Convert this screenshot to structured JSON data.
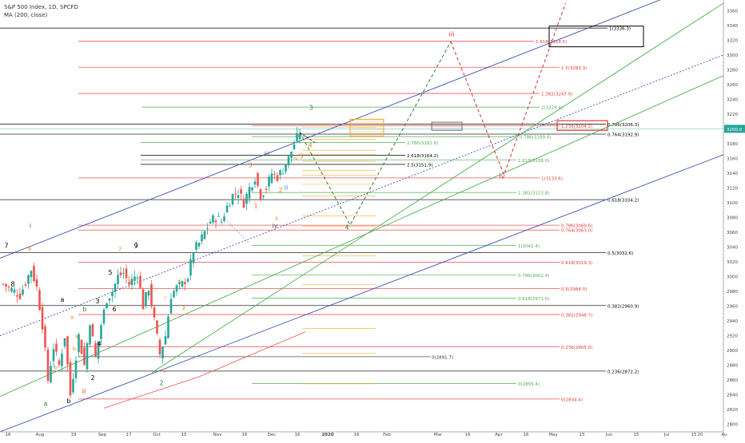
{
  "legend": {
    "title": "S&P 500 Index, 1D, SPCFD",
    "indicator": "MA (200, close)"
  },
  "chart_data": {
    "type": "candlestick",
    "ylim": [
      2790,
      3370
    ],
    "price_ticks": [
      2800,
      2820,
      2840,
      2860,
      2880,
      2900,
      2920,
      2940,
      2960,
      2980,
      3000,
      3020,
      3040,
      3060,
      3080,
      3100,
      3120,
      3140,
      3160,
      3180,
      3200,
      3220,
      3240,
      3260,
      3280,
      3300,
      3320,
      3340,
      3360
    ],
    "last_price": "3200.0",
    "last_price_value": 3200,
    "time_labels": [
      "16",
      "Aug",
      "19",
      "Sep",
      "17",
      "Oct",
      "15",
      "Nov",
      "16",
      "Dec",
      "16",
      "2020",
      "16",
      "Feb",
      "Mar",
      "16",
      "Apr",
      "16",
      "May",
      "15",
      "Jun",
      "15",
      "Jul",
      "15",
      "20",
      "Au"
    ],
    "fib_levels": [
      {
        "label": "1(3336.3)",
        "value": 3336.3,
        "color": "#000000"
      },
      {
        "label": "1.618(3318.5)",
        "value": 3318.5,
        "color": "#e53935"
      },
      {
        "label": "1.5(3283.3)",
        "value": 3283.3,
        "color": "#e53935"
      },
      {
        "label": "1.382(3247.9)",
        "value": 3247.9,
        "color": "#e53935"
      },
      {
        "label": "2(3229.4)",
        "value": 3229.4,
        "color": "#4caf50"
      },
      {
        "label": "0.786(3206.3)",
        "value": 3206.3,
        "color": "#000000"
      },
      {
        "label": "1.236(3204.2)",
        "value": 3204.2,
        "color": "#e53935"
      },
      {
        "label": "0.764(3192.9)",
        "value": 3192.9,
        "color": "#000000"
      },
      {
        "label": "0.786(3189.4)",
        "value": 3189.4,
        "color": "#4caf50"
      },
      {
        "label": "2.786(3181.6)",
        "value": 3181.6,
        "color": "#4caf50"
      },
      {
        "label": "2.618(3164.2)",
        "value": 3164.2,
        "color": "#000000"
      },
      {
        "label": "1.618(3158.0)",
        "value": 3158.0,
        "color": "#4caf50"
      },
      {
        "label": "2.5(3151.9)",
        "value": 3151.9,
        "color": "#000000"
      },
      {
        "label": "1(3133.6)",
        "value": 3133.6,
        "color": "#e53935"
      },
      {
        "label": "1.382(3113.8)",
        "value": 3113.8,
        "color": "#4caf50"
      },
      {
        "label": "0.618(3104.2)",
        "value": 3104.2,
        "color": "#000000"
      },
      {
        "label": "0.786(3069.6)",
        "value": 3069.6,
        "color": "#e53935"
      },
      {
        "label": "0.764(3063.0)",
        "value": 3063.0,
        "color": "#e53935"
      },
      {
        "label": "1(3042.4)",
        "value": 3042.4,
        "color": "#4caf50"
      },
      {
        "label": "0.5(3032.6)",
        "value": 3032.6,
        "color": "#000000"
      },
      {
        "label": "0.618(3019.3)",
        "value": 3019.3,
        "color": "#e53935"
      },
      {
        "label": "0.786(3002.4)",
        "value": 3002.4,
        "color": "#4caf50"
      },
      {
        "label": "0.5(2984.0)",
        "value": 2984.0,
        "color": "#e53935"
      },
      {
        "label": "0.618(2971.0)",
        "value": 2971.0,
        "color": "#4caf50"
      },
      {
        "label": "0.382(2960.9)",
        "value": 2960.9,
        "color": "#000000"
      },
      {
        "label": "0.382(2948.7)",
        "value": 2948.7,
        "color": "#e53935"
      },
      {
        "label": "0.236(2905.0)",
        "value": 2905.0,
        "color": "#e53935"
      },
      {
        "label": "0(2891.7)",
        "value": 2891.7,
        "color": "#333333"
      },
      {
        "label": "0.236(2872.2)",
        "value": 2872.2,
        "color": "#000000"
      },
      {
        "label": "0(2855.4)",
        "value": 2855.4,
        "color": "#4caf50"
      },
      {
        "label": "0(2834.4)",
        "value": 2834.4,
        "color": "#e53935"
      }
    ],
    "wave_labels": [
      {
        "text": "i",
        "color": "#d32f2f"
      },
      {
        "text": "ii",
        "color": "#d32f2f"
      },
      {
        "text": "iii",
        "color": "#d32f2f"
      },
      {
        "text": "iv",
        "color": "#d32f2f"
      },
      {
        "text": "1",
        "color": "#2e7d32"
      },
      {
        "text": "2",
        "color": "#2e7d32"
      },
      {
        "text": "3",
        "color": "#2e7d32"
      },
      {
        "text": "4",
        "color": "#2e7d32"
      },
      {
        "text": "a",
        "color": "#2e7d32"
      },
      {
        "text": "b",
        "color": "#2e7d32"
      },
      {
        "text": "3",
        "color": "#f57c00"
      },
      {
        "text": "4",
        "color": "#f57c00"
      },
      {
        "text": "5",
        "color": "#f57c00"
      },
      {
        "text": "1",
        "color": "#f57c00"
      },
      {
        "text": "2",
        "color": "#f57c00"
      },
      {
        "text": "iii",
        "color": "#555555"
      },
      {
        "text": "iv",
        "color": "#555555"
      },
      {
        "text": "ii",
        "color": "#1e88e5"
      },
      {
        "text": "7",
        "color": "#000000"
      },
      {
        "text": "8",
        "color": "#000000"
      },
      {
        "text": "9",
        "color": "#000000"
      },
      {
        "text": "3",
        "color": "#000000"
      },
      {
        "text": "5",
        "color": "#000000"
      },
      {
        "text": "6",
        "color": "#000000"
      },
      {
        "text": "4",
        "color": "#000000"
      },
      {
        "text": "2",
        "color": "#000000"
      },
      {
        "text": "a",
        "color": "#000000"
      },
      {
        "text": "b",
        "color": "#000000"
      }
    ],
    "colors": {
      "up": "#26a69a",
      "down": "#ef5350",
      "ma": "#ef5350",
      "channel_blue": "#3f51b5",
      "channel_green": "#4caf50",
      "projection_green": "#2e7d32",
      "projection_red": "#d32f2f"
    }
  }
}
